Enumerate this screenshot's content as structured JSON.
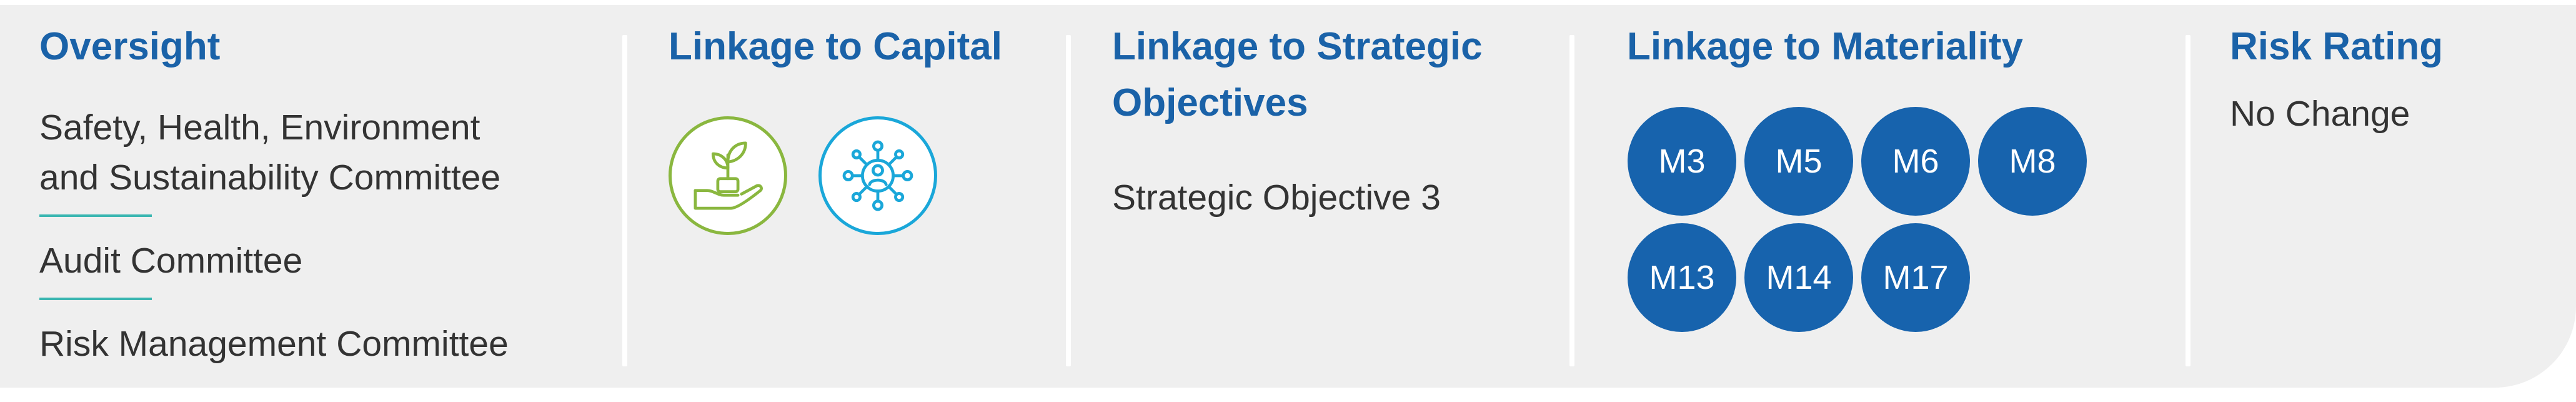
{
  "oversight": {
    "heading": "Oversight",
    "items": [
      {
        "line1": "Safety, Health, Environment",
        "line2": "and Sustainability Committee"
      },
      {
        "line1": "Audit Committee"
      },
      {
        "line1": "Risk Management Committee"
      }
    ]
  },
  "capital": {
    "heading": "Linkage to Capital",
    "icons": [
      {
        "name": "plant-in-hand-icon",
        "color": "#8ab73f"
      },
      {
        "name": "network-people-icon",
        "color": "#1aa7d9"
      }
    ]
  },
  "strategic": {
    "heading_line1": "Linkage to Strategic",
    "heading_line2": "Objectives",
    "value": "Strategic Objective 3"
  },
  "materiality": {
    "heading": "Linkage to Materiality",
    "circles": [
      "M3",
      "M5",
      "M6",
      "M8",
      "M13",
      "M14",
      "M17"
    ],
    "circle_color": "#1763ad"
  },
  "risk": {
    "heading": "Risk Rating",
    "value": "No Change"
  },
  "colors": {
    "heading": "#1a62a8",
    "panel": "#efefef",
    "rule": "#3ab6b1"
  }
}
